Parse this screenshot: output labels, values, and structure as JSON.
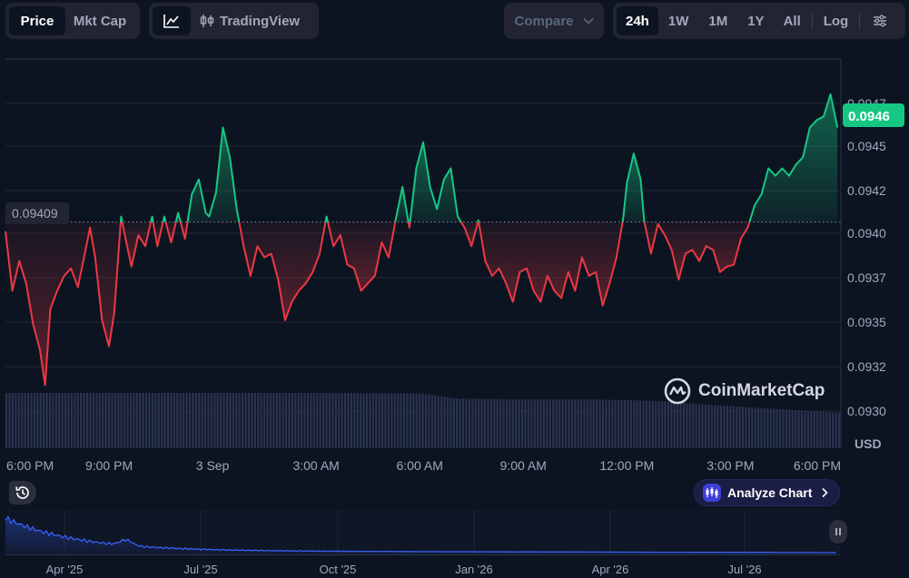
{
  "toolbar": {
    "view_tabs": [
      {
        "label": "Price",
        "active": true
      },
      {
        "label": "Mkt Cap",
        "active": false
      }
    ],
    "tradingview_label": "TradingView",
    "compare_label": "Compare",
    "ranges": [
      {
        "label": "24h",
        "active": true
      },
      {
        "label": "1W",
        "active": false
      },
      {
        "label": "1M",
        "active": false
      },
      {
        "label": "1Y",
        "active": false
      },
      {
        "label": "All",
        "active": false
      }
    ],
    "log_label": "Log"
  },
  "chart": {
    "brand": "CoinMarketCap",
    "currency": "USD",
    "current_price": "0.0946",
    "reference_price": "0.09409",
    "analyze_label": "Analyze Chart",
    "colors": {
      "up": "#16c784",
      "down": "#ea3943",
      "volume": "#2a3350",
      "navigator": "#3861fb",
      "accent_badge": "#16c784"
    }
  },
  "chart_data": {
    "type": "line",
    "currency": "USD",
    "reference_value": 0.09409,
    "current_value": 0.0946,
    "y_tick_labels": [
      "0.0947",
      "0.0945",
      "0.0942",
      "0.0940",
      "0.0937",
      "0.0935",
      "0.0932",
      "0.0930"
    ],
    "y_ticks": [
      0.09473,
      0.0945,
      0.09426,
      0.09403,
      0.09379,
      0.09355,
      0.09331,
      0.09307
    ],
    "ylim": [
      0.09287,
      0.09497
    ],
    "x_tick_labels": [
      "6:00 PM",
      "9:00 PM",
      "3 Sep",
      "3:00 AM",
      "6:00 AM",
      "9:00 AM",
      "12:00 PM",
      "3:00 PM",
      "6:00 PM"
    ],
    "x_tick_hours": [
      0,
      3,
      6,
      9,
      12,
      15,
      18,
      21,
      24
    ],
    "xlim_hours": [
      0,
      24.2
    ],
    "price_series": [
      [
        0.0,
        0.09404
      ],
      [
        0.2,
        0.09372
      ],
      [
        0.4,
        0.09388
      ],
      [
        0.6,
        0.09376
      ],
      [
        0.8,
        0.09354
      ],
      [
        1.0,
        0.0934
      ],
      [
        1.15,
        0.09321
      ],
      [
        1.3,
        0.09362
      ],
      [
        1.5,
        0.09372
      ],
      [
        1.7,
        0.0938
      ],
      [
        1.9,
        0.09384
      ],
      [
        2.1,
        0.09374
      ],
      [
        2.3,
        0.09392
      ],
      [
        2.45,
        0.09406
      ],
      [
        2.6,
        0.0939
      ],
      [
        2.8,
        0.09356
      ],
      [
        3.0,
        0.09342
      ],
      [
        3.15,
        0.0936
      ],
      [
        3.35,
        0.09412
      ],
      [
        3.5,
        0.09398
      ],
      [
        3.65,
        0.09385
      ],
      [
        3.85,
        0.09402
      ],
      [
        4.05,
        0.09396
      ],
      [
        4.25,
        0.09412
      ],
      [
        4.4,
        0.09396
      ],
      [
        4.6,
        0.09412
      ],
      [
        4.8,
        0.09398
      ],
      [
        5.0,
        0.09414
      ],
      [
        5.2,
        0.094
      ],
      [
        5.4,
        0.09424
      ],
      [
        5.6,
        0.09432
      ],
      [
        5.8,
        0.09414
      ],
      [
        5.9,
        0.09412
      ],
      [
        6.1,
        0.09425
      ],
      [
        6.3,
        0.0946
      ],
      [
        6.5,
        0.09444
      ],
      [
        6.7,
        0.09416
      ],
      [
        6.9,
        0.09396
      ],
      [
        7.1,
        0.0938
      ],
      [
        7.3,
        0.09396
      ],
      [
        7.5,
        0.0939
      ],
      [
        7.7,
        0.09392
      ],
      [
        7.9,
        0.09378
      ],
      [
        8.1,
        0.09356
      ],
      [
        8.3,
        0.09366
      ],
      [
        8.5,
        0.09372
      ],
      [
        8.7,
        0.09376
      ],
      [
        8.9,
        0.09382
      ],
      [
        9.1,
        0.09392
      ],
      [
        9.3,
        0.09412
      ],
      [
        9.5,
        0.09396
      ],
      [
        9.7,
        0.09402
      ],
      [
        9.9,
        0.09386
      ],
      [
        10.1,
        0.09384
      ],
      [
        10.3,
        0.09372
      ],
      [
        10.5,
        0.09376
      ],
      [
        10.7,
        0.0938
      ],
      [
        10.9,
        0.09398
      ],
      [
        11.1,
        0.0939
      ],
      [
        11.3,
        0.0941
      ],
      [
        11.5,
        0.09428
      ],
      [
        11.7,
        0.09406
      ],
      [
        11.9,
        0.09438
      ],
      [
        12.1,
        0.09452
      ],
      [
        12.3,
        0.09428
      ],
      [
        12.5,
        0.09416
      ],
      [
        12.7,
        0.09432
      ],
      [
        12.9,
        0.09438
      ],
      [
        13.1,
        0.09412
      ],
      [
        13.3,
        0.09406
      ],
      [
        13.5,
        0.09396
      ],
      [
        13.7,
        0.0941
      ],
      [
        13.9,
        0.09388
      ],
      [
        14.1,
        0.0938
      ],
      [
        14.3,
        0.09384
      ],
      [
        14.5,
        0.09376
      ],
      [
        14.7,
        0.09366
      ],
      [
        14.9,
        0.09382
      ],
      [
        15.1,
        0.09384
      ],
      [
        15.3,
        0.09372
      ],
      [
        15.5,
        0.09366
      ],
      [
        15.7,
        0.0938
      ],
      [
        15.9,
        0.09372
      ],
      [
        16.1,
        0.09368
      ],
      [
        16.3,
        0.09382
      ],
      [
        16.5,
        0.09372
      ],
      [
        16.7,
        0.0939
      ],
      [
        16.9,
        0.0938
      ],
      [
        17.1,
        0.09382
      ],
      [
        17.3,
        0.09364
      ],
      [
        17.5,
        0.09376
      ],
      [
        17.7,
        0.0939
      ],
      [
        17.9,
        0.09412
      ],
      [
        18.0,
        0.0943
      ],
      [
        18.2,
        0.09446
      ],
      [
        18.4,
        0.09432
      ],
      [
        18.5,
        0.0941
      ],
      [
        18.7,
        0.09392
      ],
      [
        18.9,
        0.09408
      ],
      [
        19.1,
        0.09402
      ],
      [
        19.3,
        0.09394
      ],
      [
        19.5,
        0.09378
      ],
      [
        19.7,
        0.09392
      ],
      [
        19.9,
        0.09394
      ],
      [
        20.1,
        0.09388
      ],
      [
        20.3,
        0.09396
      ],
      [
        20.5,
        0.09394
      ],
      [
        20.7,
        0.09382
      ],
      [
        20.9,
        0.09385
      ],
      [
        21.1,
        0.09386
      ],
      [
        21.3,
        0.094
      ],
      [
        21.5,
        0.09406
      ],
      [
        21.7,
        0.09418
      ],
      [
        21.9,
        0.09424
      ],
      [
        22.1,
        0.09438
      ],
      [
        22.3,
        0.09434
      ],
      [
        22.5,
        0.09438
      ],
      [
        22.7,
        0.09434
      ],
      [
        22.9,
        0.0944
      ],
      [
        23.1,
        0.09444
      ],
      [
        23.3,
        0.0946
      ],
      [
        23.5,
        0.09464
      ],
      [
        23.7,
        0.09466
      ],
      [
        23.9,
        0.09478
      ],
      [
        24.1,
        0.0946
      ]
    ],
    "volume_relative": [
      [
        0,
        1.0
      ],
      [
        3,
        1.0
      ],
      [
        6,
        1.0
      ],
      [
        9,
        1.0
      ],
      [
        12,
        0.99
      ],
      [
        13,
        0.9
      ],
      [
        15,
        0.88
      ],
      [
        17,
        0.88
      ],
      [
        18,
        0.87
      ],
      [
        19,
        0.85
      ],
      [
        20,
        0.8
      ],
      [
        22,
        0.72
      ],
      [
        24.2,
        0.64
      ]
    ],
    "navigator": {
      "type": "area",
      "x_tick_labels": [
        "Apr '25",
        "Jul '25",
        "Oct '25",
        "Jan '26",
        "Apr '26",
        "Jul '26"
      ]
    }
  }
}
